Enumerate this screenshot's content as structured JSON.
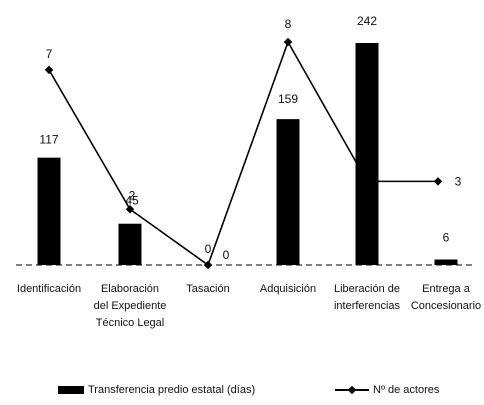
{
  "chart_data": {
    "type": "bar",
    "categories": [
      [
        "Identificación"
      ],
      [
        "Elaboración",
        "del Expediente",
        "Técnico Legal"
      ],
      [
        "Tasación"
      ],
      [
        "Adquisición"
      ],
      [
        "Liberación de",
        "interferencias"
      ],
      [
        "Entrega a",
        "Concesionario"
      ]
    ],
    "series": [
      {
        "name": "Transferencia predio estatal (días)",
        "type": "bar",
        "axis": "left",
        "values": [
          117,
          45,
          0,
          159,
          242,
          6
        ],
        "data_labels": [
          "117",
          "45",
          "0",
          "159",
          "242",
          "6"
        ]
      },
      {
        "name": "Nº de actores",
        "type": "line",
        "axis": "right",
        "values": [
          7,
          2,
          0,
          8,
          3,
          3
        ],
        "data_labels": [
          "7",
          "2",
          "0",
          "8",
          "",
          "3"
        ]
      }
    ],
    "ylim_left": [
      0,
      250
    ],
    "ylim_right": [
      0,
      8.5
    ],
    "grid": false,
    "legend_position": "bottom",
    "colors": {
      "bar": "#000000",
      "line": "#000000"
    }
  },
  "legend": {
    "bar_label": "Transferencia predio estatal (días)",
    "line_label": "Nº de actores"
  }
}
